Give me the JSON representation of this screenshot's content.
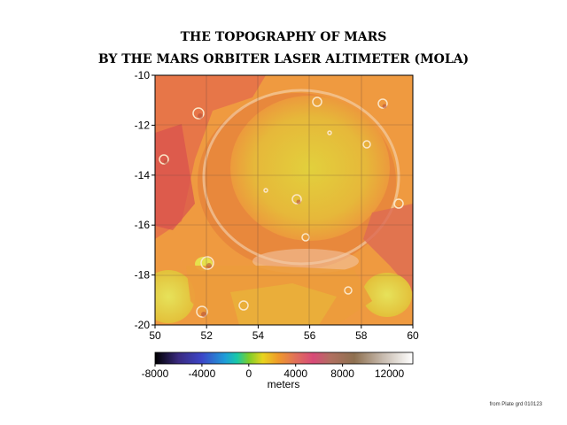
{
  "title_line1": "THE TOPOGRAPHY OF MARS",
  "title_line2": "BY THE MARS ORBITER LASER ALTIMETER (MOLA)",
  "map": {
    "x_ticks": [
      "50",
      "52",
      "54",
      "56",
      "58",
      "60"
    ],
    "y_ticks": [
      "-10",
      "-12",
      "-14",
      "-16",
      "-18",
      "-20"
    ],
    "x_range": [
      50,
      60
    ],
    "y_range": [
      -20,
      -10
    ],
    "grid": true
  },
  "colorbar": {
    "ticks": [
      "-8000",
      "-4000",
      "0",
      "4000",
      "8000",
      "12000"
    ],
    "tick_values": [
      -8000,
      -4000,
      0,
      4000,
      8000,
      12000
    ],
    "range": [
      -8000,
      14000
    ],
    "label": "meters",
    "stops": [
      {
        "value": -8000,
        "color": "#000000"
      },
      {
        "value": -6000,
        "color": "#3a2a80"
      },
      {
        "value": -4000,
        "color": "#3c46c8"
      },
      {
        "value": -2000,
        "color": "#1e9ed8"
      },
      {
        "value": -1000,
        "color": "#18c8a8"
      },
      {
        "value": 0,
        "color": "#7ccd2a"
      },
      {
        "value": 1200,
        "color": "#e8d41e"
      },
      {
        "value": 2500,
        "color": "#ef9a2a"
      },
      {
        "value": 4000,
        "color": "#e0705a"
      },
      {
        "value": 5500,
        "color": "#d84a78"
      },
      {
        "value": 7000,
        "color": "#b07060"
      },
      {
        "value": 9000,
        "color": "#8e7050"
      },
      {
        "value": 11500,
        "color": "#c8bcb0"
      },
      {
        "value": 14000,
        "color": "#ffffff"
      }
    ]
  },
  "credit": "from Plate grd 010123",
  "colors": {
    "plain": "#f0a640",
    "rim": "#e06a45",
    "basin_floor": "#e6c83a",
    "low_basin": "#e3d84a",
    "ridge": "#d84a5a"
  }
}
